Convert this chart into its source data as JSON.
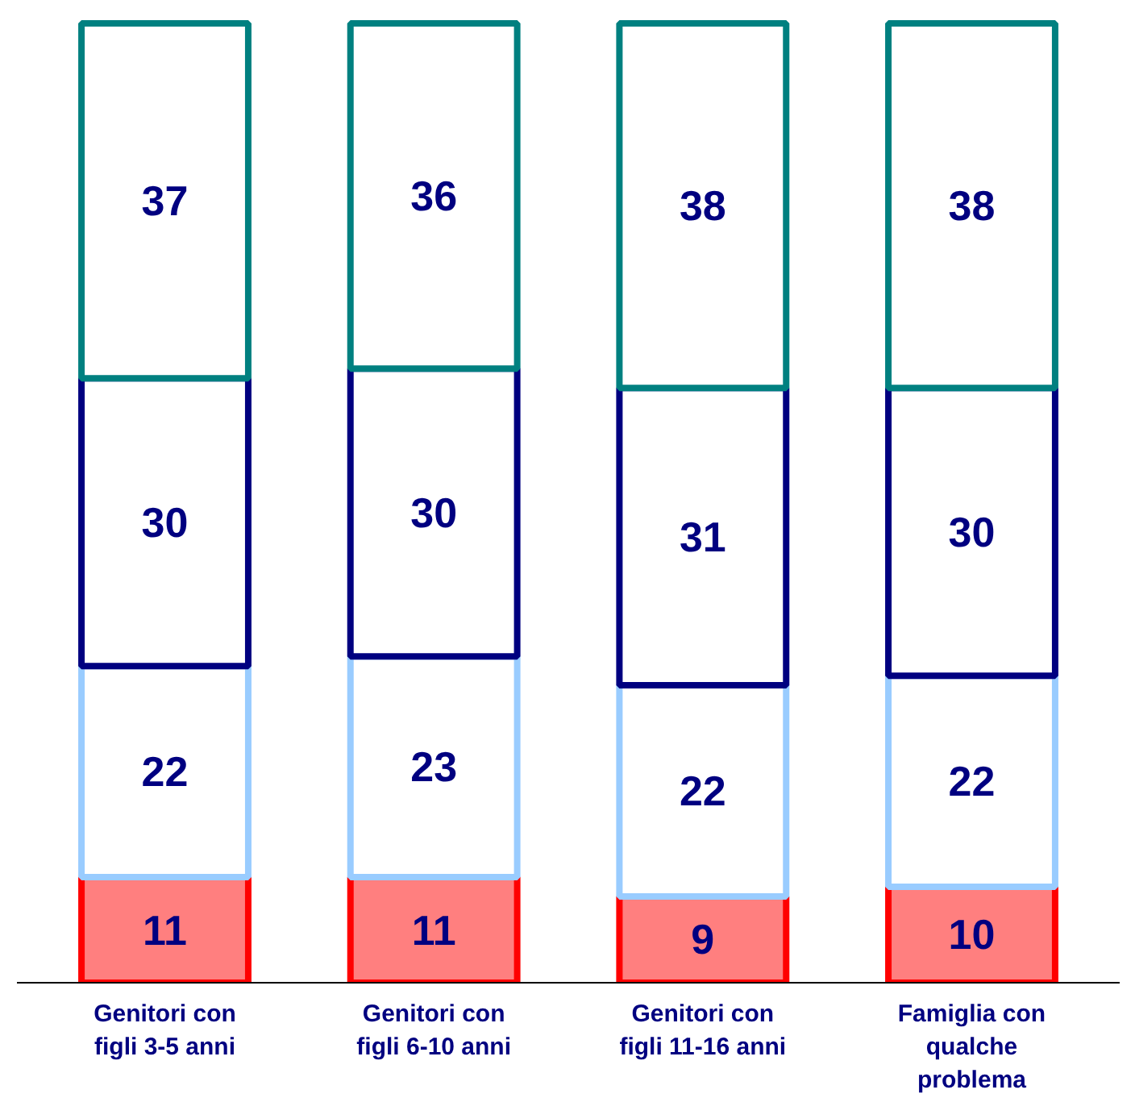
{
  "chart_data": {
    "type": "bar",
    "stacked": true,
    "tick_labels": "x",
    "data_labels": true,
    "categories": [
      "Genitori con\nfigli 3-5 anni",
      "Genitori con\nfigli 6-10 anni",
      "Genitori con\nfigli 11-16 anni",
      "Famiglia con\nqualche\nproblema"
    ],
    "series": [
      {
        "color": "#ff0000",
        "values": [
          11,
          11,
          9,
          10
        ]
      },
      {
        "color": "#99ccff",
        "values": [
          22,
          23,
          22,
          22
        ]
      },
      {
        "color": "#000080",
        "values": [
          30,
          30,
          31,
          30
        ]
      },
      {
        "color": "#008080",
        "values": [
          37,
          36,
          38,
          38
        ]
      }
    ]
  }
}
